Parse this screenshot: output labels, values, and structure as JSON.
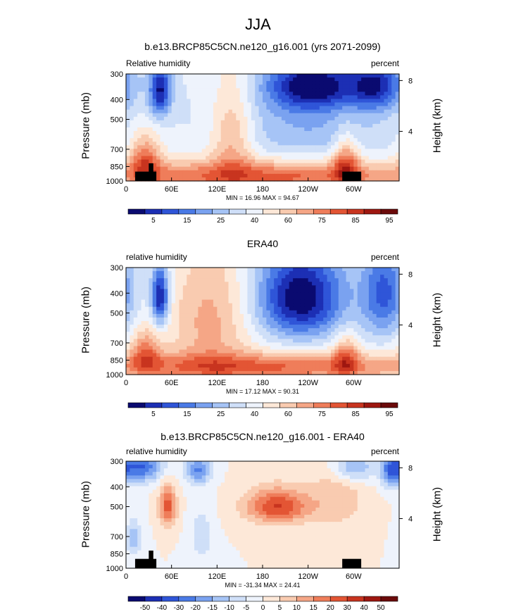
{
  "suptitle": "JJA",
  "panels": [
    {
      "title": "b.e13.BRCP85C5CN.ne120_g16.001 (yrs 2071-2099)",
      "left_string": "Relative humidity",
      "right_string": "percent",
      "stats": "MIN =  16.96  MAX =  94.67"
    },
    {
      "title": "ERA40",
      "left_string": "relative humidity",
      "right_string": "percent",
      "stats": "MIN =  17.12  MAX =  90.31"
    },
    {
      "title": "b.e13.BRCP85C5CN.ne120_g16.001 - ERA40",
      "left_string": "relative humidity",
      "right_string": "percent",
      "stats": "MIN = -31.34  MAX =  24.41"
    }
  ],
  "axes": {
    "ylabel_left": "Pressure (mb)",
    "ylabel_right": "Height (km)"
  },
  "chart_data": [
    {
      "type": "heatmap",
      "title": "b.e13.BRCP85C5CN.ne120_g16.001 (yrs 2071-2099)",
      "x_ticks": [
        "0",
        "60E",
        "120E",
        "180",
        "120W",
        "60W"
      ],
      "x_tick_lon": [
        0,
        60,
        120,
        180,
        240,
        300
      ],
      "xlim": [
        0,
        360
      ],
      "y_ticks": [
        "300",
        "400",
        "500",
        "700",
        "850",
        "1000"
      ],
      "y_tick_values": [
        300,
        400,
        500,
        700,
        850,
        1000
      ],
      "ylim": [
        1000,
        300
      ],
      "y_scale": "log",
      "right_ticks": [
        "8",
        "4"
      ],
      "right_tick_values": [
        8,
        4
      ],
      "colorbar": {
        "colors": [
          "#0a0a70",
          "#1c2fb4",
          "#2f55d8",
          "#4a7ae6",
          "#7aa2f0",
          "#a6c4f6",
          "#cfdff8",
          "#eef3fc",
          "#fde8d8",
          "#f9cbb0",
          "#f5a686",
          "#ef7d5a",
          "#e35534",
          "#c8341f",
          "#9e1710",
          "#6b0a0a"
        ],
        "labels": [
          "5",
          "15",
          "25",
          "40",
          "60",
          "75",
          "85",
          "95"
        ]
      },
      "fields": {
        "base": 50,
        "blobs": [
          {
            "lon": 180,
            "p": 950,
            "slon": 170,
            "sp": 120,
            "amp": 30
          },
          {
            "lon": 25,
            "p": 800,
            "slon": 15,
            "sp": 160,
            "amp": 25
          },
          {
            "lon": 290,
            "p": 820,
            "slon": 12,
            "sp": 160,
            "amp": 25
          },
          {
            "lon": 140,
            "p": 600,
            "slon": 20,
            "sp": 250,
            "amp": 18
          },
          {
            "lon": 45,
            "p": 360,
            "slon": 10,
            "sp": 80,
            "amp": -35
          },
          {
            "lon": 245,
            "p": 340,
            "slon": 40,
            "sp": 70,
            "amp": -35
          },
          {
            "lon": 330,
            "p": 340,
            "slon": 25,
            "sp": 70,
            "amp": -30
          },
          {
            "lon": 240,
            "p": 520,
            "slon": 70,
            "sp": 200,
            "amp": -12
          }
        ]
      },
      "stats": {
        "min": 16.96,
        "max": 94.67
      }
    },
    {
      "type": "heatmap",
      "title": "ERA40",
      "x_ticks": [
        "0",
        "60E",
        "120E",
        "180",
        "120W",
        "60W"
      ],
      "x_tick_lon": [
        0,
        60,
        120,
        180,
        240,
        300
      ],
      "xlim": [
        0,
        360
      ],
      "y_ticks": [
        "300",
        "400",
        "500",
        "700",
        "850",
        "1000"
      ],
      "y_tick_values": [
        300,
        400,
        500,
        700,
        850,
        1000
      ],
      "ylim": [
        1000,
        300
      ],
      "y_scale": "log",
      "right_ticks": [
        "8",
        "4"
      ],
      "right_tick_values": [
        8,
        4
      ],
      "colorbar": {
        "colors": [
          "#0a0a70",
          "#1c2fb4",
          "#2f55d8",
          "#4a7ae6",
          "#7aa2f0",
          "#a6c4f6",
          "#cfdff8",
          "#eef3fc",
          "#fde8d8",
          "#f9cbb0",
          "#f5a686",
          "#ef7d5a",
          "#e35534",
          "#c8341f",
          "#9e1710",
          "#6b0a0a"
        ],
        "labels": [
          "5",
          "15",
          "25",
          "40",
          "60",
          "75",
          "85",
          "95"
        ]
      },
      "fields": {
        "base": 50,
        "blobs": [
          {
            "lon": 180,
            "p": 920,
            "slon": 180,
            "sp": 100,
            "amp": 28
          },
          {
            "lon": 25,
            "p": 780,
            "slon": 15,
            "sp": 140,
            "amp": 22
          },
          {
            "lon": 290,
            "p": 820,
            "slon": 12,
            "sp": 140,
            "amp": 20
          },
          {
            "lon": 110,
            "p": 550,
            "slon": 40,
            "sp": 300,
            "amp": 18
          },
          {
            "lon": 45,
            "p": 420,
            "slon": 8,
            "sp": 100,
            "amp": -38
          },
          {
            "lon": 230,
            "p": 420,
            "slon": 40,
            "sp": 150,
            "amp": -40
          },
          {
            "lon": 340,
            "p": 400,
            "slon": 20,
            "sp": 150,
            "amp": -25
          }
        ]
      },
      "stats": {
        "min": 17.12,
        "max": 90.31
      }
    },
    {
      "type": "heatmap",
      "title": "b.e13.BRCP85C5CN.ne120_g16.001 - ERA40",
      "x_ticks": [
        "0",
        "60E",
        "120E",
        "180",
        "120W",
        "60W"
      ],
      "x_tick_lon": [
        0,
        60,
        120,
        180,
        240,
        300
      ],
      "xlim": [
        0,
        360
      ],
      "y_ticks": [
        "300",
        "400",
        "500",
        "700",
        "850",
        "1000"
      ],
      "y_tick_values": [
        300,
        400,
        500,
        700,
        850,
        1000
      ],
      "ylim": [
        1000,
        300
      ],
      "y_scale": "log",
      "right_ticks": [
        "8",
        "4"
      ],
      "right_tick_values": [
        8,
        4
      ],
      "colorbar": {
        "colors": [
          "#0a0a70",
          "#1c2fb4",
          "#2f55d8",
          "#4a7ae6",
          "#7aa2f0",
          "#a6c4f6",
          "#cfdff8",
          "#eef3fc",
          "#fde8d8",
          "#f9cbb0",
          "#f5a686",
          "#ef7d5a",
          "#e35534",
          "#c8341f",
          "#9e1710",
          "#6b0a0a"
        ],
        "labels": [
          "-50",
          "-40",
          "-30",
          "-20",
          "-15",
          "-10",
          "-5",
          "0",
          "5",
          "10",
          "15",
          "20",
          "30",
          "40",
          "50"
        ]
      },
      "fields": {
        "base": 0,
        "blobs": [
          {
            "lon": 200,
            "p": 500,
            "slon": 30,
            "sp": 70,
            "amp": 22
          },
          {
            "lon": 55,
            "p": 500,
            "slon": 8,
            "sp": 80,
            "amp": 20
          },
          {
            "lon": 20,
            "p": 320,
            "slon": 20,
            "sp": 40,
            "amp": -22
          },
          {
            "lon": 95,
            "p": 330,
            "slon": 12,
            "sp": 40,
            "amp": -18
          },
          {
            "lon": 300,
            "p": 320,
            "slon": 20,
            "sp": 40,
            "amp": -15
          },
          {
            "lon": 350,
            "p": 330,
            "slon": 10,
            "sp": 50,
            "amp": -18
          },
          {
            "lon": 100,
            "p": 700,
            "slon": 10,
            "sp": 150,
            "amp": -8
          },
          {
            "lon": 10,
            "p": 720,
            "slon": 8,
            "sp": 100,
            "amp": -12
          },
          {
            "lon": 280,
            "p": 450,
            "slon": 25,
            "sp": 120,
            "amp": 8
          }
        ]
      },
      "stats": {
        "min": -31.34,
        "max": 24.41
      }
    }
  ],
  "colors": {
    "topography": "#000000",
    "frame": "#000000"
  }
}
